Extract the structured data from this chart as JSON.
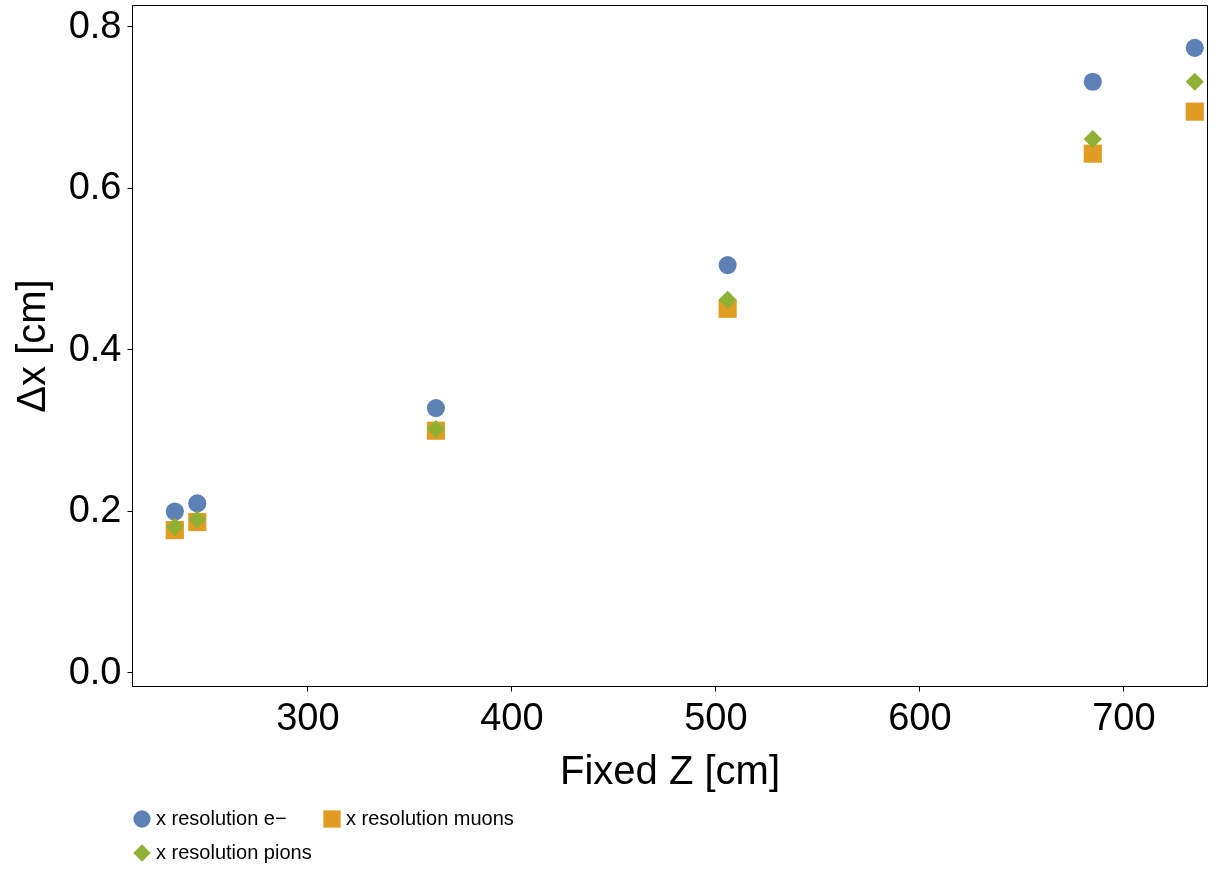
{
  "chart_data": {
    "type": "scatter",
    "xlabel": "Fixed Z [cm]",
    "ylabel": "Δx [cm]",
    "xlim": [
      214,
      741
    ],
    "xticks": [
      300,
      400,
      500,
      600,
      700
    ],
    "ylim": [
      -0.017,
      0.826
    ],
    "yticks": [
      {
        "value": 0,
        "label": "0.0"
      },
      0.2,
      0.4,
      0.6,
      0.8
    ],
    "x": [
      235,
      246,
      363,
      506,
      685,
      735
    ],
    "series": [
      {
        "name": "x resolution e−",
        "color": "#5e81b5",
        "marker": "circle",
        "values": [
          0.199,
          0.209,
          0.327,
          0.504,
          0.731,
          0.773
        ]
      },
      {
        "name": "x resolution muons",
        "color": "#e19c24",
        "marker": "square",
        "values": [
          0.176,
          0.186,
          0.299,
          0.45,
          0.642,
          0.694
        ]
      },
      {
        "name": "x resolution pions",
        "color": "#8fb032",
        "marker": "diamond",
        "values": [
          0.18,
          0.189,
          0.301,
          0.461,
          0.66,
          0.731
        ]
      }
    ],
    "legend": "bottom",
    "grid": false
  }
}
